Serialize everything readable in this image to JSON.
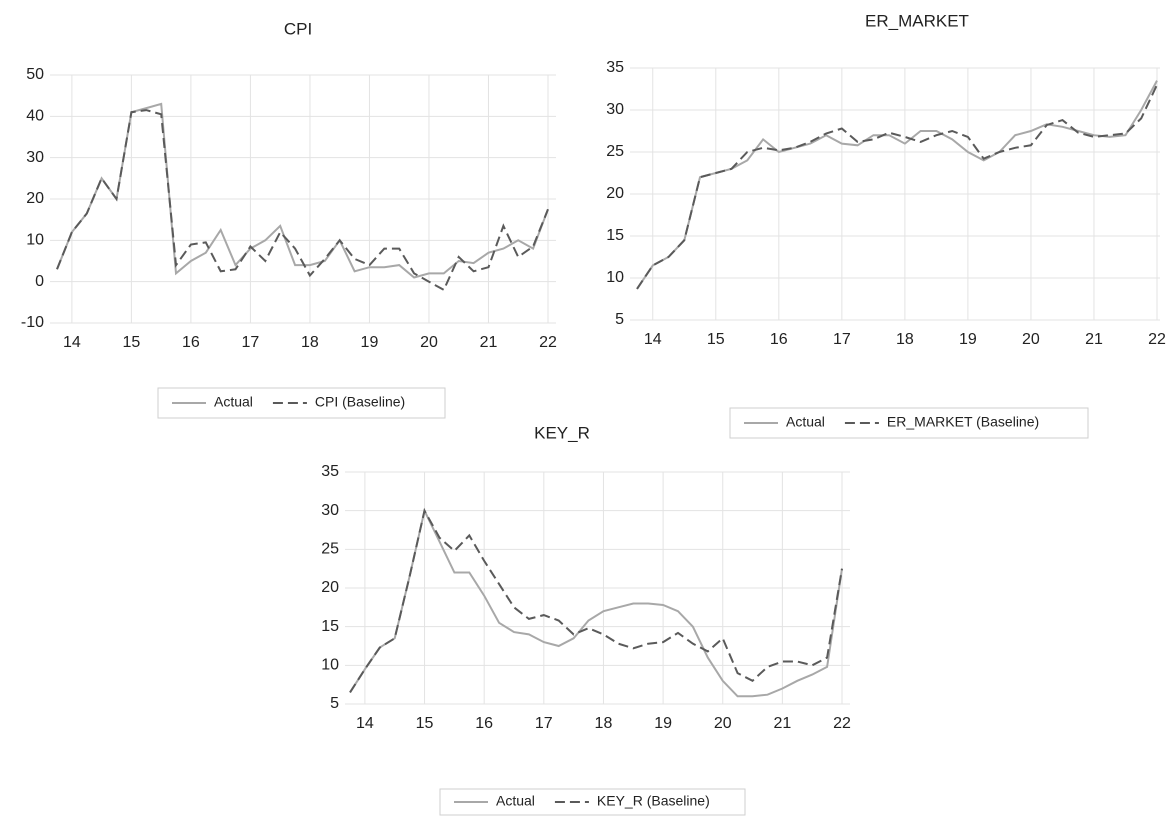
{
  "chart_data": [
    {
      "type": "line",
      "title": "CPI",
      "categories": [
        null,
        "14",
        null,
        null,
        null,
        "15",
        null,
        null,
        null,
        "16",
        null,
        null,
        null,
        "17",
        null,
        null,
        null,
        "18",
        null,
        null,
        null,
        "19",
        null,
        null,
        null,
        "20",
        null,
        null,
        null,
        "21",
        null,
        null,
        null,
        "22"
      ],
      "ylim": [
        -10,
        50
      ],
      "yticks": [
        -10,
        0,
        10,
        20,
        30,
        40,
        50
      ],
      "grid": true,
      "legend": "bottom",
      "series": [
        {
          "name": "Actual",
          "color": "#a8a8a8",
          "style": "solid",
          "values": [
            3,
            12,
            16.5,
            25,
            20,
            41,
            42,
            43,
            2,
            5,
            7,
            12.5,
            4,
            8,
            10,
            13.5,
            4,
            4,
            5,
            10,
            2.5,
            3.5,
            3.5,
            4,
            1,
            2,
            2,
            5,
            4.5,
            7,
            8,
            10,
            8,
            17.5
          ]
        },
        {
          "name": "CPI (Baseline)",
          "color": "#5a5a5a",
          "style": "dashed",
          "values": [
            3,
            12,
            16.5,
            25,
            20,
            41,
            41.5,
            40.5,
            4,
            9,
            9.5,
            2.5,
            3,
            8.5,
            5,
            12,
            8,
            1.5,
            5.5,
            10,
            5.5,
            4,
            8,
            8,
            2,
            0,
            -2,
            6,
            2.5,
            3.5,
            13.5,
            6,
            8.5,
            17.5
          ]
        }
      ]
    },
    {
      "type": "line",
      "title": "ER_MARKET",
      "categories": [
        null,
        "14",
        null,
        null,
        null,
        "15",
        null,
        null,
        null,
        "16",
        null,
        null,
        null,
        "17",
        null,
        null,
        null,
        "18",
        null,
        null,
        null,
        "19",
        null,
        null,
        null,
        "20",
        null,
        null,
        null,
        "21",
        null,
        null,
        null,
        "22"
      ],
      "ylim": [
        5,
        35
      ],
      "yticks": [
        5,
        10,
        15,
        20,
        25,
        30,
        35
      ],
      "grid": true,
      "legend": "bottom",
      "series": [
        {
          "name": "Actual",
          "color": "#a8a8a8",
          "style": "solid",
          "values": [
            8.7,
            11.5,
            12.5,
            14.5,
            22,
            22.5,
            23,
            24,
            26.5,
            25,
            25.5,
            26,
            27,
            26,
            25.8,
            27,
            27,
            26,
            27.5,
            27.5,
            26.5,
            25,
            24,
            25,
            27,
            27.5,
            28.3,
            28,
            27.5,
            27,
            26.8,
            27,
            30,
            33.5
          ]
        },
        {
          "name": "ER_MARKET (Baseline)",
          "color": "#5a5a5a",
          "style": "dashed",
          "values": [
            8.7,
            11.5,
            12.5,
            14.5,
            22,
            22.5,
            23,
            25,
            25.5,
            25.2,
            25.5,
            26.2,
            27.2,
            27.8,
            26.2,
            26.5,
            27.3,
            26.8,
            26.2,
            27,
            27.5,
            26.8,
            24.2,
            25,
            25.5,
            25.8,
            28.2,
            28.8,
            27.3,
            26.8,
            27,
            27.2,
            29,
            33
          ]
        }
      ]
    },
    {
      "type": "line",
      "title": "KEY_R",
      "categories": [
        null,
        "14",
        null,
        null,
        null,
        "15",
        null,
        null,
        null,
        "16",
        null,
        null,
        null,
        "17",
        null,
        null,
        null,
        "18",
        null,
        null,
        null,
        "19",
        null,
        null,
        null,
        "20",
        null,
        null,
        null,
        "21",
        null,
        null,
        null,
        "22"
      ],
      "ylim": [
        5,
        35
      ],
      "yticks": [
        5,
        10,
        15,
        20,
        25,
        30,
        35
      ],
      "grid": true,
      "legend": "bottom",
      "series": [
        {
          "name": "Actual",
          "color": "#a8a8a8",
          "style": "solid",
          "values": [
            6.5,
            9.5,
            12.3,
            13.5,
            21.5,
            30,
            26,
            22,
            22,
            19,
            15.5,
            14.3,
            14,
            13,
            12.5,
            13.5,
            15.8,
            17,
            17.5,
            18,
            18,
            17.8,
            17,
            15,
            11,
            8,
            6,
            6,
            6.2,
            7,
            8,
            8.8,
            9.8,
            22.5
          ]
        },
        {
          "name": "KEY_R (Baseline)",
          "color": "#5a5a5a",
          "style": "dashed",
          "values": [
            6.5,
            9.5,
            12.3,
            13.5,
            21.5,
            30,
            26.5,
            24.8,
            26.8,
            23.5,
            20.5,
            17.5,
            16,
            16.5,
            15.8,
            14,
            14.8,
            14,
            12.8,
            12.2,
            12.8,
            13,
            14.2,
            12.8,
            11.8,
            13.5,
            9,
            8,
            9.8,
            10.5,
            10.5,
            10,
            11,
            22.5
          ]
        }
      ]
    }
  ]
}
